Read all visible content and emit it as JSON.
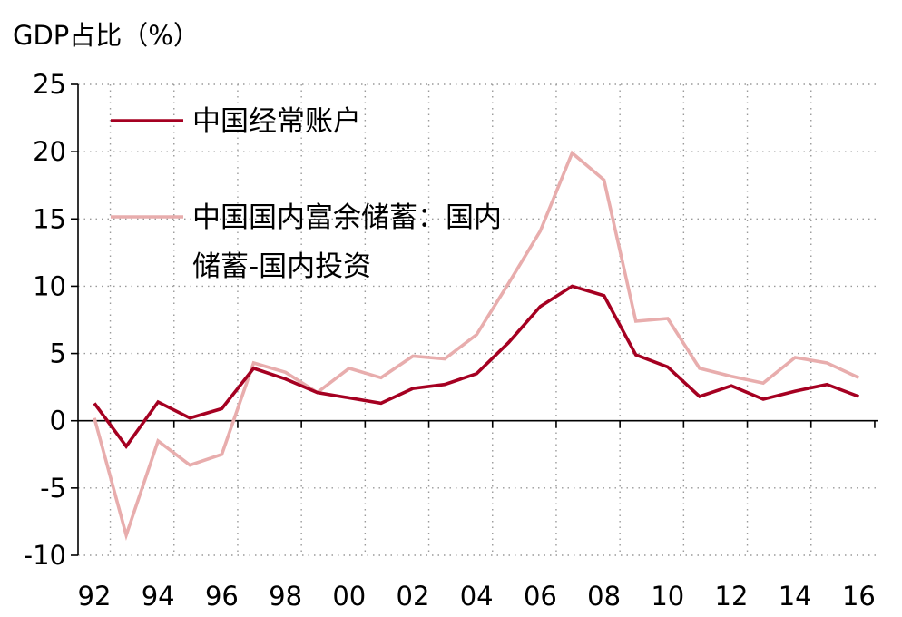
{
  "chart_data": {
    "type": "line",
    "ylabel": "GDP占比（%）",
    "ylim": [
      -10,
      25
    ],
    "yticks": [
      25,
      20,
      15,
      10,
      5,
      0,
      -5,
      -10
    ],
    "ytick_labels": [
      "25",
      "20",
      "15",
      "10",
      "5",
      "0",
      "-5",
      "-10"
    ],
    "x": [
      1992,
      1993,
      1994,
      1995,
      1996,
      1997,
      1998,
      1999,
      2000,
      2001,
      2002,
      2003,
      2004,
      2005,
      2006,
      2007,
      2008,
      2009,
      2010,
      2011,
      2012,
      2013,
      2014,
      2015,
      2016
    ],
    "xticks": [
      1992,
      1994,
      1996,
      1998,
      2000,
      2002,
      2004,
      2006,
      2008,
      2010,
      2012,
      2014,
      2016
    ],
    "xtick_labels": [
      "92",
      "94",
      "96",
      "98",
      "00",
      "02",
      "04",
      "06",
      "08",
      "10",
      "12",
      "14",
      "16"
    ],
    "grid": true,
    "legend_position": "top-left",
    "series": [
      {
        "name": "中国经常账户",
        "color": "#a50021",
        "values": [
          1.3,
          -1.9,
          1.4,
          0.2,
          0.9,
          3.9,
          3.1,
          2.1,
          1.7,
          1.3,
          2.4,
          2.7,
          3.5,
          5.8,
          8.5,
          10.0,
          9.3,
          4.9,
          4.0,
          1.8,
          2.6,
          1.6,
          2.2,
          2.7,
          1.8
        ]
      },
      {
        "name": "中国国内富余储蓄：国内储蓄-国内投资",
        "legend_lines": [
          "中国国内富余储蓄：国内",
          "储蓄-国内投资"
        ],
        "color": "#e8adad",
        "values": [
          0.2,
          -8.5,
          -1.5,
          -3.3,
          -2.5,
          4.3,
          3.6,
          2.1,
          3.9,
          3.2,
          4.8,
          4.6,
          6.4,
          10.2,
          14.1,
          19.9,
          17.9,
          7.4,
          7.6,
          3.9,
          3.3,
          2.8,
          4.7,
          4.3,
          3.2
        ]
      }
    ]
  }
}
